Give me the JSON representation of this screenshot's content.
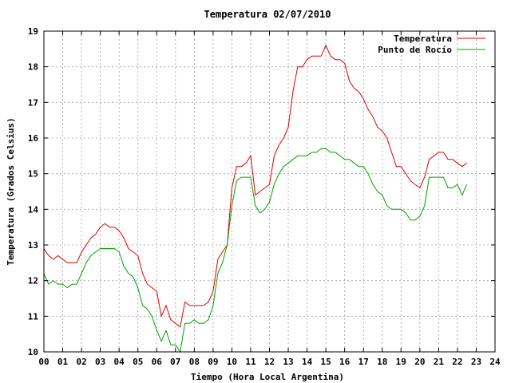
{
  "chart_data": {
    "type": "line",
    "title": "Temperatura 02/07/2010",
    "xlabel": "Tiempo (Hora Local Argentina)",
    "ylabel": "Temperatura (Grados Celsius)",
    "xlim": [
      0,
      24
    ],
    "ylim": [
      10,
      19
    ],
    "x_ticks": [
      "00",
      "01",
      "02",
      "03",
      "04",
      "05",
      "06",
      "07",
      "08",
      "09",
      "10",
      "11",
      "12",
      "13",
      "14",
      "15",
      "16",
      "17",
      "18",
      "19",
      "20",
      "21",
      "22",
      "23",
      "24"
    ],
    "y_ticks": [
      "10",
      "11",
      "12",
      "13",
      "14",
      "15",
      "16",
      "17",
      "18",
      "19"
    ],
    "grid": true,
    "legend_position": "top-right",
    "series": [
      {
        "name": "Temperatura",
        "color": "#e00000",
        "x": [
          0.0,
          0.25,
          0.5,
          0.75,
          1.0,
          1.25,
          1.5,
          1.75,
          2.0,
          2.25,
          2.5,
          2.75,
          3.0,
          3.25,
          3.5,
          3.75,
          4.0,
          4.25,
          4.5,
          4.75,
          5.0,
          5.25,
          5.5,
          5.75,
          6.0,
          6.25,
          6.5,
          6.75,
          7.0,
          7.25,
          7.5,
          7.75,
          8.0,
          8.25,
          8.5,
          8.75,
          9.0,
          9.25,
          9.5,
          9.75,
          10.0,
          10.25,
          10.5,
          10.75,
          11.0,
          11.25,
          11.5,
          11.75,
          12.0,
          12.25,
          12.5,
          12.75,
          13.0,
          13.25,
          13.5,
          13.75,
          14.0,
          14.25,
          14.5,
          14.75,
          15.0,
          15.25,
          15.5,
          15.75,
          16.0,
          16.25,
          16.5,
          16.75,
          17.0,
          17.25,
          17.5,
          17.75,
          18.0,
          18.25,
          18.5,
          18.75,
          19.0,
          19.25,
          19.5,
          19.75,
          20.0,
          20.25,
          20.5,
          20.75,
          21.0,
          21.25,
          21.5,
          21.75,
          22.0,
          22.25,
          22.5
        ],
        "values": [
          12.9,
          12.7,
          12.6,
          12.7,
          12.6,
          12.5,
          12.5,
          12.5,
          12.8,
          13.0,
          13.2,
          13.3,
          13.5,
          13.6,
          13.5,
          13.5,
          13.4,
          13.2,
          12.9,
          12.8,
          12.7,
          12.2,
          11.9,
          11.8,
          11.7,
          11.0,
          11.3,
          10.9,
          10.8,
          10.7,
          11.4,
          11.3,
          11.3,
          11.3,
          11.3,
          11.4,
          11.7,
          12.6,
          12.8,
          13.0,
          14.6,
          15.2,
          15.2,
          15.3,
          15.5,
          14.4,
          14.5,
          14.6,
          14.7,
          15.5,
          15.8,
          16.0,
          16.3,
          17.3,
          18.0,
          18.0,
          18.2,
          18.3,
          18.3,
          18.3,
          18.6,
          18.3,
          18.2,
          18.2,
          18.1,
          17.6,
          17.4,
          17.3,
          17.1,
          16.8,
          16.6,
          16.3,
          16.2,
          16.0,
          15.6,
          15.2,
          15.2,
          15.0,
          14.8,
          14.7,
          14.6,
          14.9,
          15.4,
          15.5,
          15.6,
          15.6,
          15.4,
          15.4,
          15.3,
          15.2,
          15.3
        ]
      },
      {
        "name": "Punto de Rocío",
        "color": "#00a000",
        "x": [
          0.0,
          0.25,
          0.5,
          0.75,
          1.0,
          1.25,
          1.5,
          1.75,
          2.0,
          2.25,
          2.5,
          2.75,
          3.0,
          3.25,
          3.5,
          3.75,
          4.0,
          4.25,
          4.5,
          4.75,
          5.0,
          5.25,
          5.5,
          5.75,
          6.0,
          6.25,
          6.5,
          6.75,
          7.0,
          7.25,
          7.5,
          7.75,
          8.0,
          8.25,
          8.5,
          8.75,
          9.0,
          9.25,
          9.5,
          9.75,
          10.0,
          10.25,
          10.5,
          10.75,
          11.0,
          11.25,
          11.5,
          11.75,
          12.0,
          12.25,
          12.5,
          12.75,
          13.0,
          13.25,
          13.5,
          13.75,
          14.0,
          14.25,
          14.5,
          14.75,
          15.0,
          15.25,
          15.5,
          15.75,
          16.0,
          16.25,
          16.5,
          16.75,
          17.0,
          17.25,
          17.5,
          17.75,
          18.0,
          18.25,
          18.5,
          18.75,
          19.0,
          19.25,
          19.5,
          19.75,
          20.0,
          20.25,
          20.5,
          20.75,
          21.0,
          21.25,
          21.5,
          21.75,
          22.0,
          22.25,
          22.5
        ],
        "values": [
          12.2,
          11.9,
          12.0,
          11.9,
          11.9,
          11.8,
          11.9,
          11.9,
          12.2,
          12.5,
          12.7,
          12.8,
          12.9,
          12.9,
          12.9,
          12.9,
          12.8,
          12.4,
          12.2,
          12.1,
          11.8,
          11.3,
          11.2,
          11.0,
          10.6,
          10.3,
          10.6,
          10.2,
          10.2,
          10.0,
          10.8,
          10.8,
          10.9,
          10.8,
          10.8,
          10.9,
          11.3,
          12.2,
          12.5,
          13.0,
          14.1,
          14.8,
          14.9,
          14.9,
          14.9,
          14.1,
          13.9,
          14.0,
          14.2,
          14.7,
          15.0,
          15.2,
          15.3,
          15.4,
          15.5,
          15.5,
          15.5,
          15.6,
          15.6,
          15.7,
          15.7,
          15.6,
          15.6,
          15.5,
          15.4,
          15.4,
          15.3,
          15.2,
          15.2,
          15.0,
          14.7,
          14.5,
          14.4,
          14.1,
          14.0,
          14.0,
          14.0,
          13.9,
          13.7,
          13.7,
          13.8,
          14.1,
          14.9,
          14.9,
          14.9,
          14.9,
          14.6,
          14.6,
          14.7,
          14.4,
          14.7
        ]
      }
    ]
  }
}
